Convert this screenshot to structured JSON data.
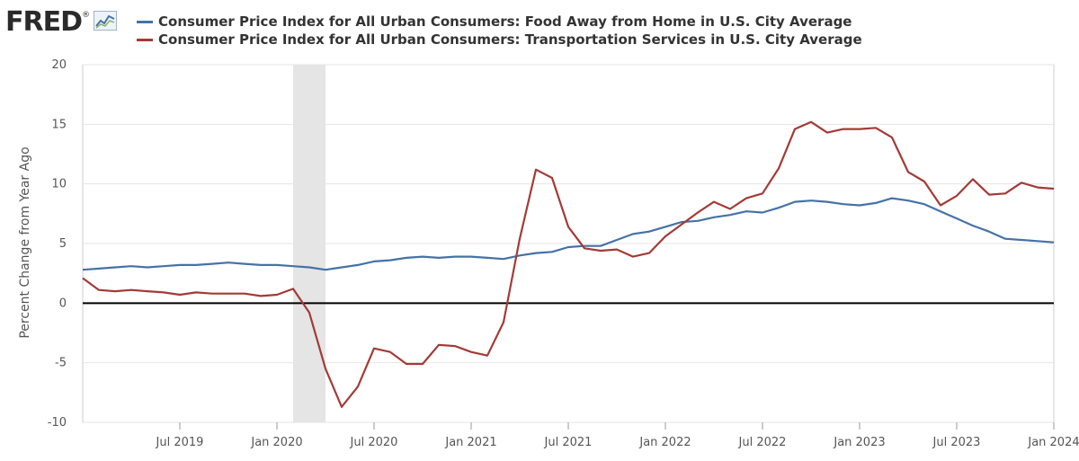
{
  "header": {
    "logo_text": "FRED",
    "logo_mark": "®"
  },
  "colors": {
    "series_blue": "#4572a7",
    "series_red": "#a23b36",
    "recession": "#e5e5e5",
    "grid": "#e6e6e6",
    "zero_line": "#000000"
  },
  "chart_data": {
    "type": "line",
    "title": "",
    "xlabel": "",
    "ylabel": "Percent Change from Year Ago",
    "ylim": [
      -10,
      20
    ],
    "yticks": [
      -10,
      -5,
      0,
      5,
      10,
      15,
      20
    ],
    "ytick_labels": [
      "-10",
      "-5",
      "0",
      "5",
      "10",
      "15",
      "20"
    ],
    "xlim": [
      "2019-01",
      "2024-01"
    ],
    "xticks": [
      "2019-07",
      "2020-01",
      "2020-07",
      "2021-01",
      "2021-07",
      "2022-01",
      "2022-07",
      "2023-01",
      "2023-07",
      "2024-01"
    ],
    "xtick_labels": [
      "Jul 2019",
      "Jan 2020",
      "Jul 2020",
      "Jan 2021",
      "Jul 2021",
      "Jan 2022",
      "Jul 2022",
      "Jan 2023",
      "Jul 2023",
      "Jan 2024"
    ],
    "grid": true,
    "recession": {
      "start": "2020-02",
      "end": "2020-04"
    },
    "x": [
      "2019-01",
      "2019-02",
      "2019-03",
      "2019-04",
      "2019-05",
      "2019-06",
      "2019-07",
      "2019-08",
      "2019-09",
      "2019-10",
      "2019-11",
      "2019-12",
      "2020-01",
      "2020-02",
      "2020-03",
      "2020-04",
      "2020-05",
      "2020-06",
      "2020-07",
      "2020-08",
      "2020-09",
      "2020-10",
      "2020-11",
      "2020-12",
      "2021-01",
      "2021-02",
      "2021-03",
      "2021-04",
      "2021-05",
      "2021-06",
      "2021-07",
      "2021-08",
      "2021-09",
      "2021-10",
      "2021-11",
      "2021-12",
      "2022-01",
      "2022-02",
      "2022-03",
      "2022-04",
      "2022-05",
      "2022-06",
      "2022-07",
      "2022-08",
      "2022-09",
      "2022-10",
      "2022-11",
      "2022-12",
      "2023-01",
      "2023-02",
      "2023-03",
      "2023-04",
      "2023-05",
      "2023-06",
      "2023-07",
      "2023-08",
      "2023-09",
      "2023-10",
      "2023-11",
      "2023-12",
      "2024-01"
    ],
    "series": [
      {
        "name": "Consumer Price Index for All Urban Consumers: Food Away from Home in U.S. City Average",
        "color": "#4572a7",
        "values": [
          2.8,
          2.9,
          3.0,
          3.1,
          3.0,
          3.1,
          3.2,
          3.2,
          3.3,
          3.4,
          3.3,
          3.2,
          3.2,
          3.1,
          3.0,
          2.8,
          3.0,
          3.2,
          3.5,
          3.6,
          3.8,
          3.9,
          3.8,
          3.9,
          3.9,
          3.8,
          3.7,
          4.0,
          4.2,
          4.3,
          4.7,
          4.8,
          4.8,
          5.3,
          5.8,
          6.0,
          6.4,
          6.8,
          6.9,
          7.2,
          7.4,
          7.7,
          7.6,
          8.0,
          8.5,
          8.6,
          8.5,
          8.3,
          8.2,
          8.4,
          8.8,
          8.6,
          8.3,
          7.7,
          7.1,
          6.5,
          6.0,
          5.4,
          5.3,
          5.2,
          5.1
        ]
      },
      {
        "name": "Consumer Price Index for All Urban Consumers: Transportation Services in U.S. City Average",
        "color": "#a23b36",
        "values": [
          2.1,
          1.1,
          1.0,
          1.1,
          1.0,
          0.9,
          0.7,
          0.9,
          0.8,
          0.8,
          0.8,
          0.6,
          0.7,
          1.2,
          -0.8,
          -5.5,
          -8.7,
          -7.0,
          -3.8,
          -4.1,
          -5.1,
          -5.1,
          -3.5,
          -3.6,
          -4.1,
          -4.4,
          -1.6,
          5.4,
          11.2,
          10.5,
          6.4,
          4.6,
          4.4,
          4.5,
          3.9,
          4.2,
          5.6,
          6.6,
          7.6,
          8.5,
          7.9,
          8.8,
          9.2,
          11.3,
          14.6,
          15.2,
          14.3,
          14.6,
          14.6,
          14.7,
          13.9,
          11.0,
          10.2,
          8.2,
          9.0,
          10.4,
          9.1,
          9.2,
          10.1,
          9.7,
          9.6
        ]
      }
    ]
  }
}
